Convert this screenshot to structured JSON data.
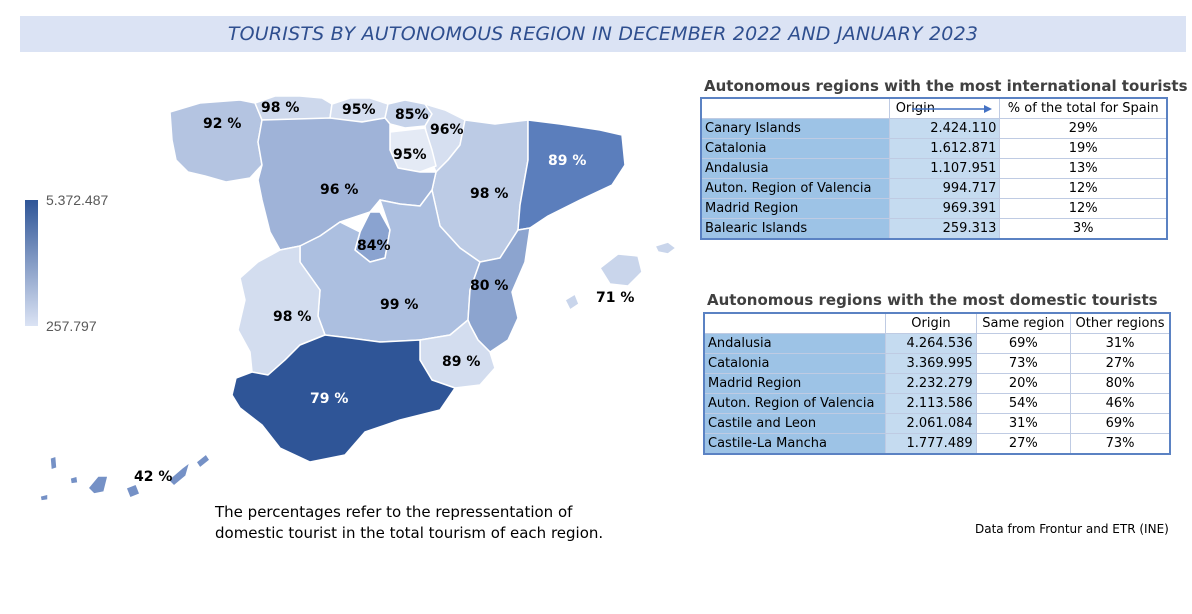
{
  "title": "TOURISTS BY AUTONOMOUS REGION IN DECEMBER 2022 AND JANUARY 2023",
  "legend": {
    "max": "5.372.487",
    "min": "257.797",
    "max_color": "#2f5597",
    "min_color": "#dbe3f4"
  },
  "regions": [
    {
      "name": "Galicia",
      "label": "92 %",
      "fill": "#b4c4e1"
    },
    {
      "name": "Asturias",
      "label": "98 %",
      "fill": "#cdd8ec"
    },
    {
      "name": "Cantabria",
      "label": "95%",
      "fill": "#d6dff0"
    },
    {
      "name": "Basque Country",
      "label": "85%",
      "fill": "#c6d3ea"
    },
    {
      "name": "Navarre",
      "label": "96%",
      "fill": "#d6dff0"
    },
    {
      "name": "La Rioja",
      "label": "95%",
      "fill": "#e4eaf5"
    },
    {
      "name": "Aragon",
      "label": "98 %",
      "fill": "#bccbe5"
    },
    {
      "name": "Catalonia",
      "label": "89 %",
      "fill": "#5b7ebc"
    },
    {
      "name": "Castile and Leon",
      "label": "96 %",
      "fill": "#9fb3d8"
    },
    {
      "name": "Madrid",
      "label": "84%",
      "fill": "#8aa3d0"
    },
    {
      "name": "Castile-La Mancha",
      "label": "99 %",
      "fill": "#acbfe0"
    },
    {
      "name": "Extremadura",
      "label": "98 %",
      "fill": "#d3ddef"
    },
    {
      "name": "Valencia",
      "label": "80 %",
      "fill": "#8ca4cf"
    },
    {
      "name": "Murcia",
      "label": "89 %",
      "fill": "#d3ddef"
    },
    {
      "name": "Andalusia",
      "label": "79 %",
      "fill": "#2f5597"
    },
    {
      "name": "Balearic Islands",
      "label": "71 %",
      "fill": "#c9d5eb"
    },
    {
      "name": "Canary Islands",
      "label": "42 %",
      "fill": "#7591c6"
    }
  ],
  "note": "The percentages refer to the repressentation of domestic tourist in the total tourism of each region.",
  "source": "Data from Frontur and ETR (INE)",
  "international": {
    "title": "Autonomous regions with the most international tourists",
    "headers": [
      "",
      "Origin",
      "% of the total for Spain"
    ],
    "rows": [
      [
        "Canary Islands",
        "2.424.110",
        "29%"
      ],
      [
        "Catalonia",
        "1.612.871",
        "19%"
      ],
      [
        "Andalusia",
        "1.107.951",
        "13%"
      ],
      [
        "Auton. Region of Valencia",
        "994.717",
        "12%"
      ],
      [
        "Madrid Region",
        "969.391",
        "12%"
      ],
      [
        "Balearic Islands",
        "259.313",
        "3%"
      ]
    ]
  },
  "domestic": {
    "title": "Autonomous regions with the most domestic tourists",
    "headers": [
      "",
      "Origin",
      "Same region",
      "Other regions"
    ],
    "rows": [
      [
        "Andalusia",
        "4.264.536",
        "69%",
        "31%"
      ],
      [
        "Catalonia",
        "3.369.995",
        "73%",
        "27%"
      ],
      [
        "Madrid Region",
        "2.232.279",
        "20%",
        "80%"
      ],
      [
        "Auton. Region of Valencia",
        "2.113.586",
        "54%",
        "46%"
      ],
      [
        "Castile and Leon",
        "2.061.084",
        "31%",
        "69%"
      ],
      [
        "Castile-La Mancha",
        "1.777.489",
        "27%",
        "73%"
      ]
    ]
  }
}
